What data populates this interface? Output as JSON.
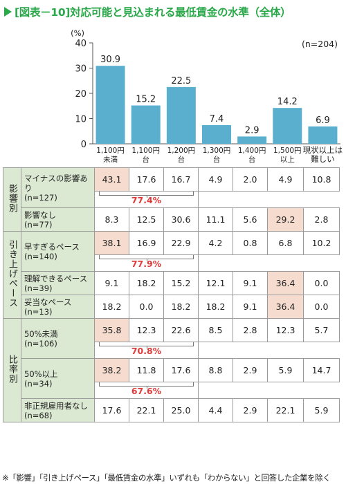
{
  "title": "[図表－10]対応可能と見込まれる最低賃金の水準（全体）",
  "note": "※「影響」「引き上げペース」「最低賃金の水準」いずれも「わからない」と回答した企業を除く",
  "chart_data": {
    "type": "bar",
    "categories": [
      [
        "1,100円",
        "未満"
      ],
      [
        "1,100円",
        "台"
      ],
      [
        "1,200円",
        "台"
      ],
      [
        "1,300円",
        "台"
      ],
      [
        "1,400円",
        "台"
      ],
      [
        "1,500円",
        "以上"
      ],
      [
        "現状以上は",
        "難しい"
      ]
    ],
    "values": [
      30.9,
      15.2,
      22.5,
      7.4,
      2.9,
      14.2,
      6.9
    ],
    "value_labels": [
      "30.9",
      "15.2",
      "22.5",
      "7.4",
      "2.9",
      "14.2",
      "6.9"
    ],
    "ylabel": "(%)",
    "sample": "(n=204)",
    "ylim": [
      0,
      40
    ],
    "yticks": [
      "0",
      "10",
      "20",
      "30",
      "40"
    ],
    "grid": false,
    "bar_color": "#5aafcf"
  },
  "table": {
    "groups": [
      {
        "label": "影響別",
        "rows": [
          {
            "label": [
              "マイナスの影響あり",
              "(n=127)"
            ],
            "values": [
              "43.1",
              "17.6",
              "16.7",
              "4.9",
              "2.0",
              "4.9",
              "10.8"
            ],
            "highlight": [
              0
            ],
            "sum": "77.4%"
          },
          {
            "label": [
              "影響なし",
              "(n=77)"
            ],
            "values": [
              "8.3",
              "12.5",
              "30.6",
              "11.1",
              "5.6",
              "29.2",
              "2.8"
            ],
            "highlight": [
              5
            ]
          }
        ]
      },
      {
        "label": "引き上げペース",
        "rows": [
          {
            "label": [
              "早すぎるペース",
              "(n=140)"
            ],
            "values": [
              "38.1",
              "16.9",
              "22.9",
              "4.2",
              "0.8",
              "6.8",
              "10.2"
            ],
            "highlight": [
              0
            ],
            "sum": "77.9%"
          },
          {
            "label": [
              "理解できるペース",
              "(n=39)"
            ],
            "values": [
              "9.1",
              "18.2",
              "15.2",
              "12.1",
              "9.1",
              "36.4",
              "0.0"
            ],
            "highlight": [
              5
            ]
          },
          {
            "label": [
              "妥当なペース",
              "(n=13)"
            ],
            "values": [
              "18.2",
              "0.0",
              "18.2",
              "18.2",
              "9.1",
              "36.4",
              "0.0"
            ],
            "highlight": [
              5
            ]
          }
        ]
      },
      {
        "label": "比率別",
        "rows": [
          {
            "label": [
              "50%未満",
              "(n=106)"
            ],
            "values": [
              "35.8",
              "12.3",
              "22.6",
              "8.5",
              "2.8",
              "12.3",
              "5.7"
            ],
            "highlight": [
              0
            ],
            "sum": "70.8%"
          },
          {
            "label": [
              "50%以上",
              "(n=34)"
            ],
            "values": [
              "38.2",
              "11.8",
              "17.6",
              "8.8",
              "2.9",
              "5.9",
              "14.7"
            ],
            "highlight": [
              0
            ],
            "sum": "67.6%"
          },
          {
            "label": [
              "非正規雇用者なし",
              "(n=68)"
            ],
            "values": [
              "17.6",
              "22.1",
              "25.0",
              "4.4",
              "2.9",
              "22.1",
              "5.9"
            ],
            "highlight": []
          }
        ]
      }
    ],
    "colors": {
      "label_bg": "#dce9d2",
      "highlight_bg": "#f6dccf",
      "sum_color": "#e03a3a"
    }
  }
}
